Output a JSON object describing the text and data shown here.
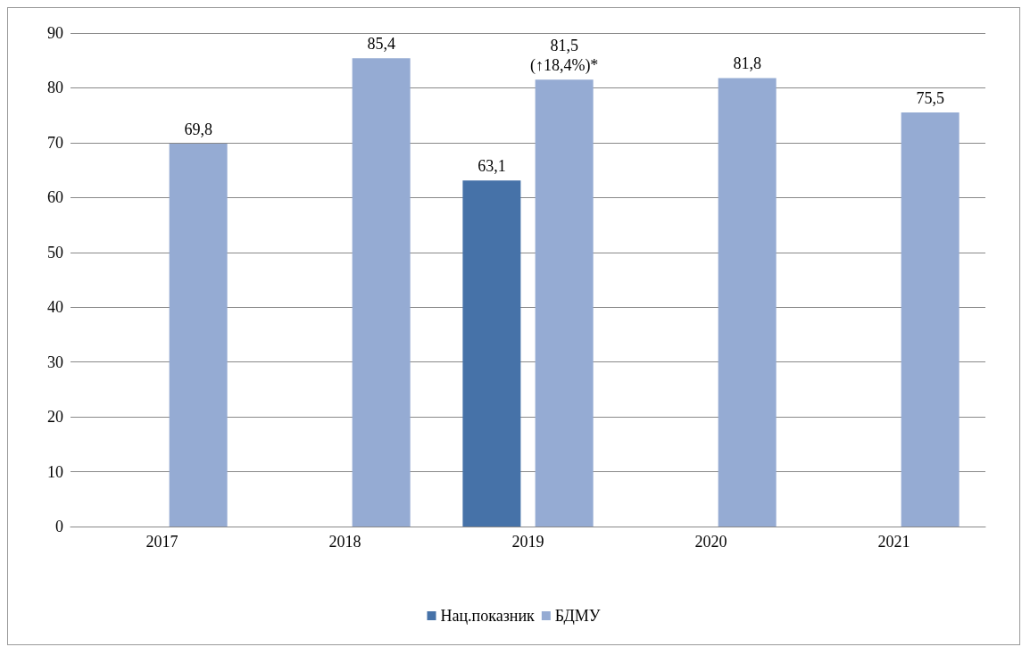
{
  "chart_data": {
    "type": "bar",
    "categories": [
      "2017",
      "2018",
      "2019",
      "2020",
      "2021"
    ],
    "series": [
      {
        "name": "Нац.показник",
        "color": "#4672a8",
        "values": [
          null,
          null,
          63.1,
          null,
          null
        ],
        "value_labels": [
          null,
          null,
          "63,1",
          null,
          null
        ]
      },
      {
        "name": "БДМУ",
        "color": "#95abd3",
        "values": [
          69.8,
          85.4,
          81.5,
          81.8,
          75.5
        ],
        "value_labels": [
          "69,8",
          "85,4",
          "81,5\n(↑18,4%)*",
          "81,8",
          "75,5"
        ]
      }
    ],
    "ylim": [
      0,
      90
    ],
    "yticks": [
      0,
      10,
      20,
      30,
      40,
      50,
      60,
      70,
      80,
      90
    ],
    "grid": "y",
    "legend": "bottom"
  }
}
